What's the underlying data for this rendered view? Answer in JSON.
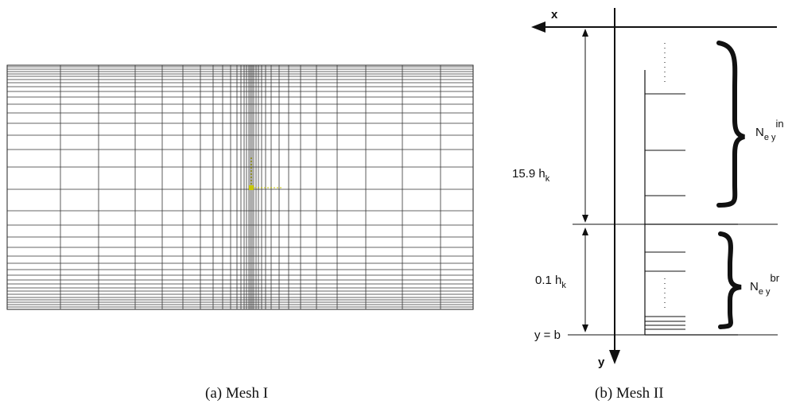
{
  "mesh1": {
    "caption": "(a)  Mesh I"
  },
  "mesh2": {
    "caption": "(b)  Mesh II",
    "axis_x": "x",
    "axis_y": "y",
    "dim_in_value": "15.9 h",
    "dim_in_sub": "k",
    "dim_br_value": "0.1 h",
    "dim_br_sub": "k",
    "boundary_label": "y = b",
    "n_in_base": "N",
    "n_in_sub": "e y",
    "n_in_sup": "in",
    "n_br_base": "N",
    "n_br_sub": "e y",
    "n_br_sup": "br"
  },
  "colors": {
    "line": "#111111",
    "origin_marker": "#c8c800"
  }
}
